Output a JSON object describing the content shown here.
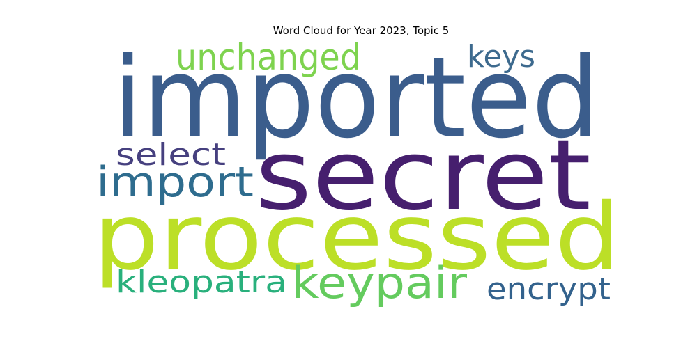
{
  "title": "Word Cloud for Year 2023, Topic 5",
  "words": [
    {
      "text": "imported",
      "color": "#3b5d8c"
    },
    {
      "text": "secret",
      "color": "#461f6e"
    },
    {
      "text": "processed",
      "color": "#bcdf27"
    },
    {
      "text": "unchanged",
      "color": "#7ed34f"
    },
    {
      "text": "keys",
      "color": "#3d6a8e"
    },
    {
      "text": "select",
      "color": "#46407f"
    },
    {
      "text": "import",
      "color": "#2e6c8e"
    },
    {
      "text": "kleopatra",
      "color": "#29b07c"
    },
    {
      "text": "keypair",
      "color": "#64cb5e"
    },
    {
      "text": "encrypt",
      "color": "#33628d"
    }
  ]
}
